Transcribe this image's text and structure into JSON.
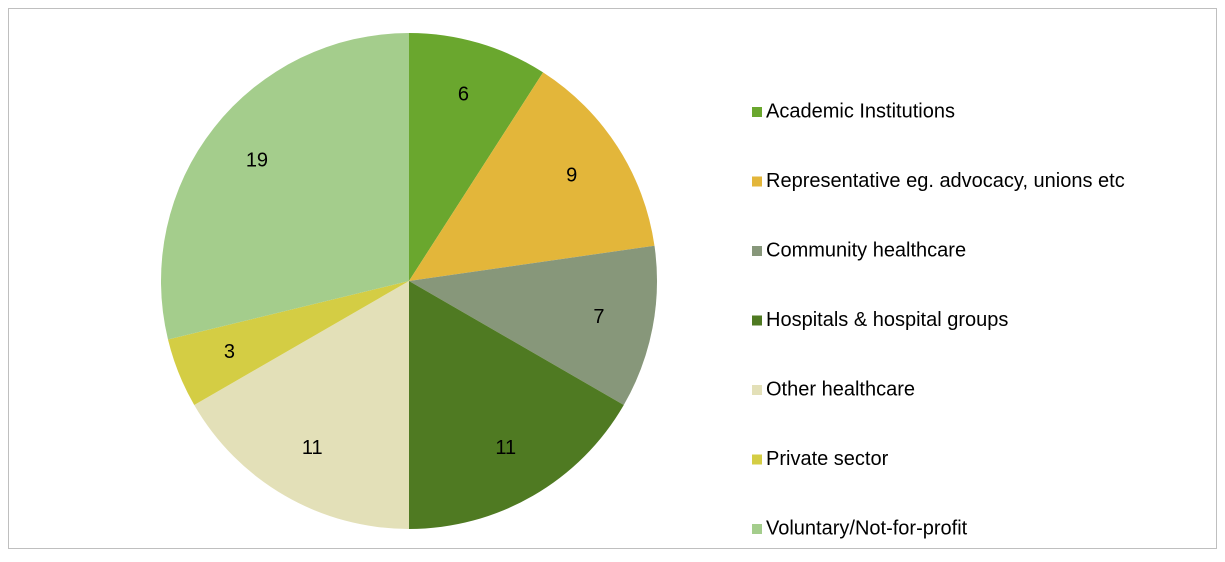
{
  "chart_data": {
    "type": "pie",
    "categories": [
      "Academic Institutions",
      "Representative eg. advocacy, unions etc",
      "Community healthcare",
      "Hospitals & hospital groups",
      "Other healthcare",
      "Private sector",
      "Voluntary/Not-for-profit"
    ],
    "values": [
      6,
      9,
      7,
      11,
      11,
      3,
      19
    ],
    "colors": [
      "#6aa72e",
      "#e3b63a",
      "#87977a",
      "#4f7a22",
      "#e3e0b8",
      "#d4cd44",
      "#a4cd8c"
    ],
    "legend": "right"
  }
}
